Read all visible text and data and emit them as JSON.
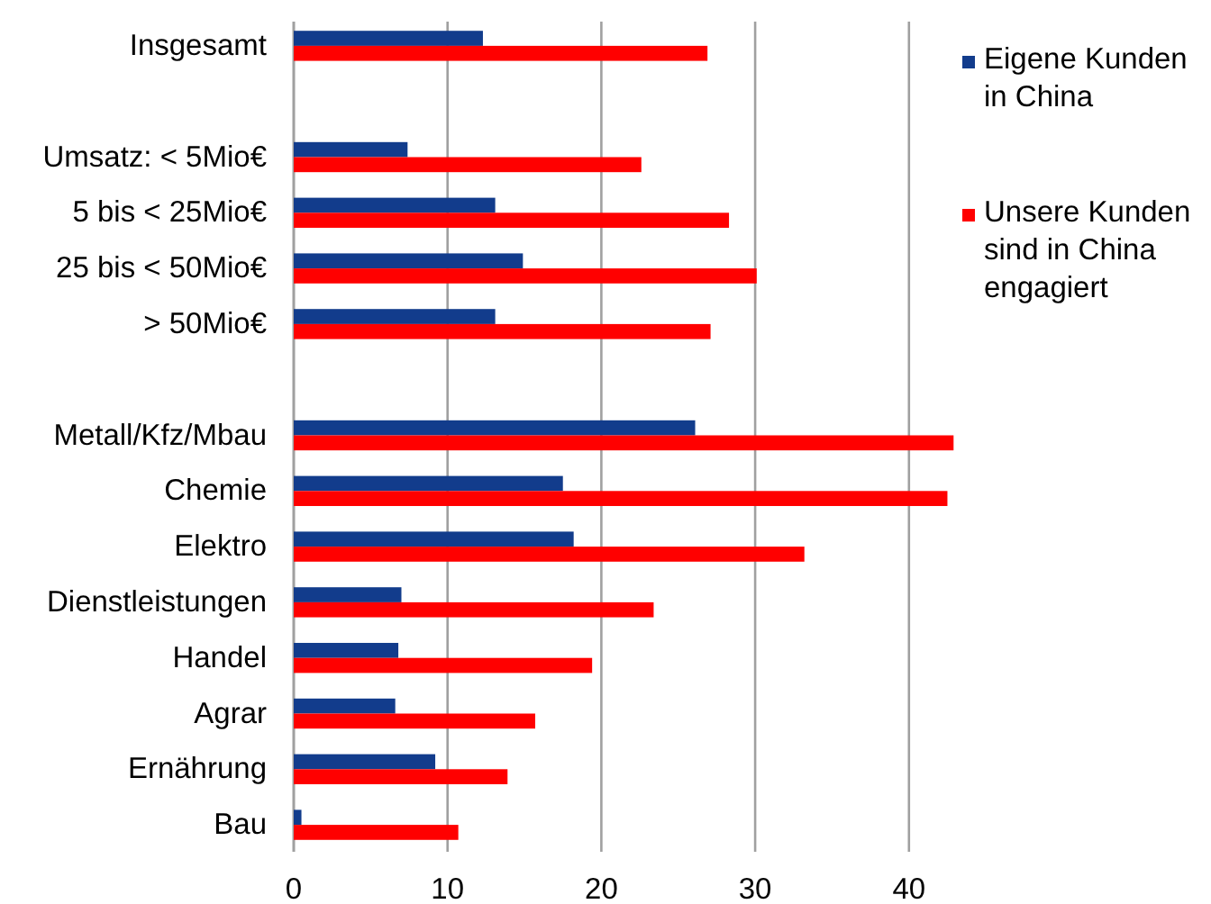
{
  "chart_data": {
    "type": "bar",
    "orientation": "horizontal",
    "categories": [
      "Insgesamt",
      null,
      "Umsatz: < 5Mio€",
      "5 bis < 25Mio€",
      "25 bis < 50Mio€",
      "> 50Mio€",
      null,
      "Metall/Kfz/Mbau",
      "Chemie",
      "Elektro",
      "Dienstleistungen",
      "Handel",
      "Agrar",
      "Ernährung",
      "Bau"
    ],
    "series": [
      {
        "name": "Eigene Kunden in China",
        "color": "#123c8c",
        "values": [
          12.3,
          null,
          7.4,
          13.1,
          14.9,
          13.1,
          null,
          26.1,
          17.5,
          18.2,
          7.0,
          6.8,
          6.6,
          9.2,
          0.5
        ]
      },
      {
        "name": "Unsere Kunden sind in China engagiert",
        "color": "#ff0000",
        "values": [
          26.9,
          null,
          22.6,
          28.3,
          30.1,
          27.1,
          null,
          42.9,
          42.5,
          33.2,
          23.4,
          19.4,
          15.7,
          13.9,
          10.7
        ]
      }
    ],
    "xlim": [
      0,
      43
    ],
    "xticks": [
      0,
      10,
      20,
      30,
      40
    ],
    "grid": "x",
    "legend": "right"
  }
}
